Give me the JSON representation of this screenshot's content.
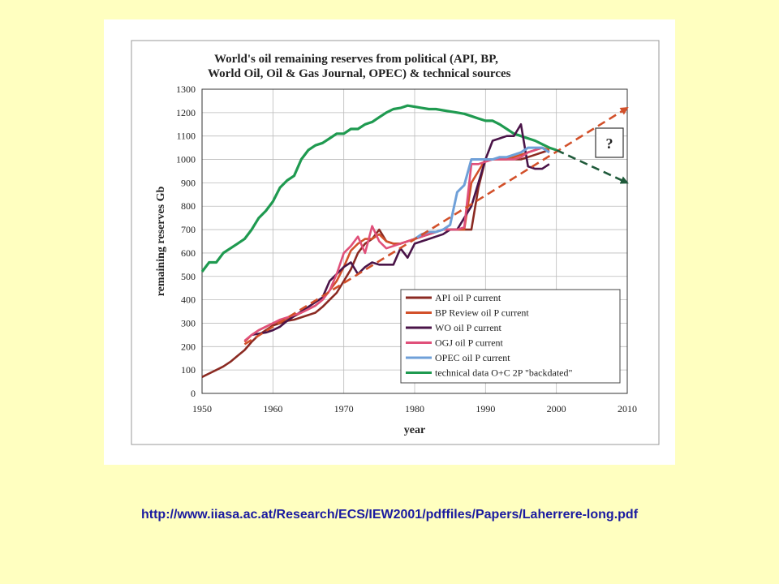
{
  "page": {
    "background": "#ffffc0",
    "panel_background": "#ffffff"
  },
  "source_url": "http://www.iiasa.ac.at/Research/ECS/IEW2001/pdffiles/Papers/Laherrere-long.pdf",
  "colors": {
    "link": "#1a1aa0"
  },
  "chart_data": {
    "type": "line",
    "title_lines": [
      "World's oil remaining reserves from political (API, BP,",
      "World Oil, Oil & Gas Journal, OPEC) & technical sources"
    ],
    "xlabel": "year",
    "ylabel": "remaining reserves Gb",
    "xlim": [
      1950,
      2010
    ],
    "ylim": [
      0,
      1300
    ],
    "x_ticks": [
      1950,
      1960,
      1970,
      1980,
      1990,
      2000,
      2010
    ],
    "y_ticks": [
      0,
      100,
      200,
      300,
      400,
      500,
      600,
      700,
      800,
      900,
      1000,
      1100,
      1200,
      1300
    ],
    "grid": true,
    "legend_position": "bottom-right",
    "question_box": "?",
    "series": [
      {
        "name": "API oil P current",
        "color": "#8b2a22",
        "x": [
          1950,
          1951,
          1952,
          1953,
          1954,
          1955,
          1956,
          1957,
          1958,
          1959,
          1960,
          1961,
          1962,
          1963,
          1964,
          1965,
          1966,
          1967,
          1968,
          1969,
          1970,
          1971,
          1972,
          1973,
          1974,
          1975,
          1976,
          1977,
          1978,
          1979,
          1980,
          1981,
          1982,
          1983,
          1984,
          1985,
          1986,
          1987,
          1988,
          1989,
          1990,
          1991,
          1992,
          1993,
          1994,
          1995,
          1996,
          1997,
          1998,
          1999
        ],
        "values": [
          70,
          85,
          100,
          115,
          135,
          160,
          185,
          220,
          250,
          270,
          290,
          300,
          310,
          315,
          325,
          335,
          345,
          370,
          400,
          430,
          480,
          530,
          600,
          640,
          660,
          700,
          650,
          640,
          640,
          650,
          660,
          670,
          680,
          690,
          700,
          700,
          700,
          700,
          700,
          880,
          1000,
          1000,
          1000,
          1000,
          1000,
          1000,
          1010,
          1020,
          1030,
          1040
        ]
      },
      {
        "name": "BP Review oil P current",
        "color": "#d2502a",
        "x": [
          1956,
          1957,
          1958,
          1959,
          1960,
          1961,
          1962,
          1963,
          1964,
          1965,
          1966,
          1967,
          1968,
          1969,
          1970,
          1971,
          1972,
          1973,
          1974,
          1975,
          1976,
          1977,
          1978,
          1979,
          1980,
          1981,
          1982,
          1983,
          1984,
          1985,
          1986,
          1987,
          1988,
          1989,
          1990,
          1991,
          1992,
          1993,
          1994,
          1995,
          1996,
          1997,
          1998,
          1999
        ],
        "values": [
          220,
          250,
          270,
          285,
          300,
          310,
          320,
          330,
          345,
          360,
          375,
          400,
          440,
          480,
          540,
          610,
          640,
          660,
          660,
          680,
          650,
          640,
          640,
          650,
          660,
          670,
          680,
          690,
          700,
          700,
          700,
          700,
          900,
          950,
          1000,
          1000,
          1000,
          1000,
          1010,
          1020,
          1030,
          1040,
          1050,
          1040
        ]
      },
      {
        "name": "WO oil P current",
        "color": "#4a1448",
        "x": [
          1957,
          1958,
          1959,
          1960,
          1961,
          1962,
          1963,
          1964,
          1965,
          1966,
          1967,
          1968,
          1969,
          1970,
          1971,
          1972,
          1973,
          1974,
          1975,
          1976,
          1977,
          1978,
          1979,
          1980,
          1981,
          1982,
          1983,
          1984,
          1985,
          1986,
          1987,
          1988,
          1989,
          1990,
          1991,
          1992,
          1993,
          1994,
          1995,
          1996,
          1997,
          1998,
          1999
        ],
        "values": [
          250,
          255,
          260,
          270,
          285,
          310,
          330,
          350,
          370,
          390,
          410,
          480,
          510,
          540,
          560,
          510,
          540,
          560,
          550,
          550,
          550,
          620,
          580,
          640,
          650,
          660,
          670,
          680,
          700,
          700,
          750,
          800,
          900,
          1000,
          1080,
          1090,
          1100,
          1100,
          1150,
          970,
          960,
          960,
          980
        ]
      },
      {
        "name": "OGJ oil P current",
        "color": "#e0507a",
        "x": [
          1956,
          1957,
          1958,
          1959,
          1960,
          1961,
          1962,
          1963,
          1964,
          1965,
          1966,
          1967,
          1968,
          1969,
          1970,
          1971,
          1972,
          1973,
          1974,
          1975,
          1976,
          1977,
          1978,
          1979,
          1980,
          1981,
          1982,
          1983,
          1984,
          1985,
          1986,
          1987,
          1988,
          1989,
          1990,
          1991,
          1992,
          1993,
          1994,
          1995,
          1996,
          1997,
          1998,
          1999
        ],
        "values": [
          225,
          250,
          270,
          285,
          300,
          315,
          325,
          335,
          345,
          360,
          375,
          400,
          440,
          510,
          600,
          630,
          670,
          600,
          715,
          650,
          620,
          630,
          640,
          650,
          660,
          670,
          680,
          690,
          700,
          700,
          700,
          710,
          980,
          980,
          990,
          1000,
          1000,
          1000,
          1000,
          1010,
          1030,
          1040,
          1050,
          1030
        ]
      },
      {
        "name": "OPEC oil P current",
        "color": "#6fa0d8",
        "x": [
          1980,
          1981,
          1982,
          1983,
          1984,
          1985,
          1986,
          1987,
          1988,
          1989,
          1990,
          1991,
          1992,
          1993,
          1994,
          1995,
          1996,
          1997,
          1998,
          1999
        ],
        "values": [
          660,
          680,
          690,
          690,
          700,
          720,
          860,
          890,
          1000,
          1000,
          1000,
          1000,
          1010,
          1010,
          1020,
          1030,
          1050,
          1050,
          1050,
          1030
        ]
      },
      {
        "name": "technical data O+C 2P \"backdated\"",
        "color": "#1f9a50",
        "x": [
          1950,
          1951,
          1952,
          1953,
          1954,
          1955,
          1956,
          1957,
          1958,
          1959,
          1960,
          1961,
          1962,
          1963,
          1964,
          1965,
          1966,
          1967,
          1968,
          1969,
          1970,
          1971,
          1972,
          1973,
          1974,
          1975,
          1976,
          1977,
          1978,
          1979,
          1980,
          1981,
          1982,
          1983,
          1984,
          1985,
          1986,
          1987,
          1988,
          1989,
          1990,
          1991,
          1992,
          1993,
          1994,
          1995,
          1996,
          1997,
          1998,
          1999,
          2000
        ],
        "values": [
          520,
          560,
          560,
          600,
          620,
          640,
          660,
          700,
          750,
          780,
          820,
          880,
          910,
          930,
          1000,
          1040,
          1060,
          1070,
          1090,
          1110,
          1110,
          1130,
          1130,
          1150,
          1160,
          1180,
          1200,
          1215,
          1220,
          1230,
          1225,
          1220,
          1215,
          1215,
          1210,
          1205,
          1200,
          1195,
          1185,
          1175,
          1165,
          1165,
          1150,
          1130,
          1110,
          1100,
          1090,
          1080,
          1065,
          1050,
          1040
        ]
      }
    ],
    "projections": [
      {
        "color": "#d2502a",
        "x": [
          1956,
          2010
        ],
        "values": [
          210,
          1220
        ]
      },
      {
        "color": "#1f5a3a",
        "x": [
          2000,
          2010
        ],
        "values": [
          1040,
          900
        ]
      }
    ]
  }
}
